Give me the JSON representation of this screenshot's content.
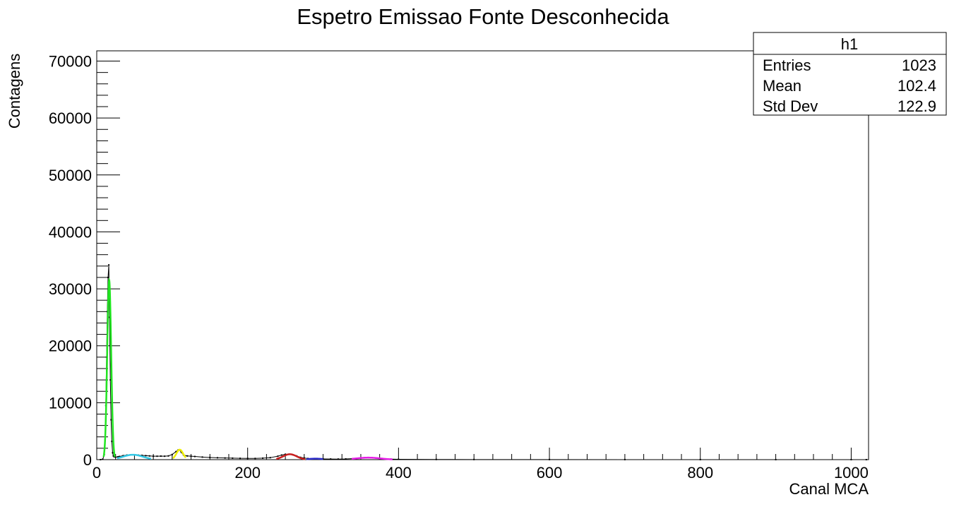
{
  "chart_data": {
    "type": "line",
    "title": "Espetro Emissao Fonte Desconhecida",
    "xlabel": "Canal MCA",
    "ylabel": "Contagens",
    "xlim": [
      0,
      1023
    ],
    "ylim": [
      0,
      71800
    ],
    "x_ticks": [
      0,
      200,
      400,
      600,
      800,
      1000
    ],
    "x_tick_labels": [
      "0",
      "200",
      "400",
      "600",
      "800",
      "1000"
    ],
    "y_ticks": [
      0,
      10000,
      20000,
      30000,
      40000,
      50000,
      60000,
      70000
    ],
    "y_tick_labels": [
      "0",
      "10000",
      "20000",
      "30000",
      "40000",
      "50000",
      "60000",
      "70000"
    ],
    "grid": false,
    "stats_box": {
      "title": "h1",
      "rows": [
        {
          "label": "Entries",
          "value": "1023"
        },
        {
          "label": "Mean",
          "value": "102.4"
        },
        {
          "label": "Std Dev",
          "value": "122.9"
        }
      ],
      "placement": "top-right"
    },
    "series": [
      {
        "kind": "histogram-points",
        "color": "#000000",
        "x": [
          5,
          8,
          10,
          11,
          12,
          13,
          14,
          15,
          16,
          17,
          18,
          19,
          20,
          21,
          22,
          23,
          25,
          28,
          30,
          35,
          40,
          45,
          50,
          55,
          60,
          65,
          70,
          75,
          80,
          85,
          90,
          95,
          100,
          105,
          108,
          110,
          112,
          115,
          120,
          125,
          130,
          140,
          150,
          160,
          170,
          180,
          190,
          200,
          210,
          220,
          230,
          240,
          245,
          250,
          255,
          260,
          265,
          270,
          275,
          280,
          290,
          300,
          310,
          320,
          330,
          340,
          350,
          355,
          360,
          365,
          370,
          375,
          380,
          390,
          400,
          450,
          500,
          600,
          700,
          800,
          900,
          1000,
          1020
        ],
        "y": [
          0,
          80,
          900,
          3500,
          9500,
          18000,
          26000,
          32000,
          34200,
          25000,
          14000,
          7000,
          3200,
          1200,
          650,
          500,
          450,
          500,
          550,
          700,
          800,
          850,
          850,
          800,
          750,
          700,
          650,
          600,
          600,
          620,
          600,
          650,
          900,
          1400,
          1700,
          1700,
          1300,
          800,
          650,
          600,
          550,
          450,
          380,
          330,
          290,
          260,
          230,
          220,
          210,
          260,
          350,
          600,
          800,
          950,
          950,
          850,
          650,
          400,
          280,
          200,
          160,
          130,
          110,
          100,
          120,
          190,
          300,
          340,
          350,
          330,
          290,
          220,
          150,
          90,
          60,
          30,
          20,
          12,
          8,
          6,
          4,
          3,
          2
        ]
      },
      {
        "kind": "fit",
        "color": "#22e622",
        "mu": 16.5,
        "sigma": 2.6,
        "amp": 31500,
        "range": [
          9,
          24
        ]
      },
      {
        "kind": "fit",
        "color": "#33c8e6",
        "mu": 48,
        "sigma": 13,
        "amp": 860,
        "range": [
          27,
          72
        ]
      },
      {
        "kind": "fit",
        "color": "#f0f000",
        "mu": 110,
        "sigma": 4.5,
        "amp": 1750,
        "range": [
          101,
          118
        ]
      },
      {
        "kind": "fit",
        "color": "#c81e1e",
        "mu": 256,
        "sigma": 9,
        "amp": 950,
        "range": [
          238,
          276
        ]
      },
      {
        "kind": "fit",
        "color": "#2a2ac8",
        "mu": 290,
        "sigma": 10,
        "amp": 170,
        "range": [
          278,
          300
        ]
      },
      {
        "kind": "fit",
        "color": "#e61ee6",
        "mu": 360,
        "sigma": 16,
        "amp": 350,
        "range": [
          338,
          392
        ]
      }
    ]
  }
}
